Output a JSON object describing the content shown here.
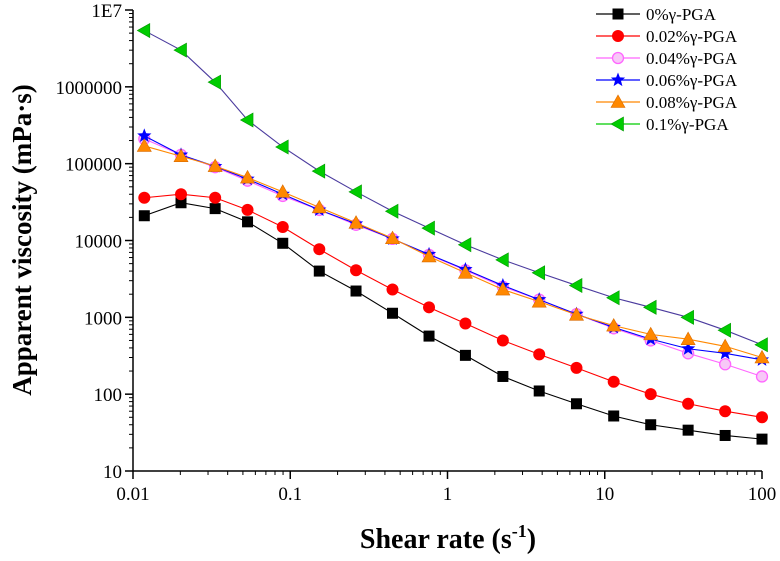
{
  "chart_data": {
    "type": "line",
    "title": "",
    "xlabel": "Shear rate (s",
    "xlabel_sup": "-1",
    "xlabel_tail": ")",
    "ylabel": "Apparent viscosity (mPa·s)",
    "xscale": "log",
    "yscale": "log",
    "xlim": [
      0.01,
      100
    ],
    "ylim": [
      10,
      10000000
    ],
    "x_ticks": [
      {
        "value": 0.01,
        "label": "0.01"
      },
      {
        "value": 0.1,
        "label": "0.1"
      },
      {
        "value": 1,
        "label": "1"
      },
      {
        "value": 10,
        "label": "10"
      },
      {
        "value": 100,
        "label": "100"
      }
    ],
    "y_ticks": [
      {
        "value": 10,
        "label": "10"
      },
      {
        "value": 100,
        "label": "100"
      },
      {
        "value": 1000,
        "label": "1000"
      },
      {
        "value": 10000,
        "label": "10000"
      },
      {
        "value": 100000,
        "label": "100000"
      },
      {
        "value": 1000000,
        "label": "1000000"
      },
      {
        "value": 10000000,
        "label": "1E7"
      }
    ],
    "legend_position": "top-right",
    "x": [
      0.0118,
      0.0202,
      0.0333,
      0.0535,
      0.0896,
      0.153,
      0.262,
      0.447,
      0.763,
      1.3,
      2.25,
      3.83,
      6.61,
      11.4,
      19.6,
      33.9,
      58.3,
      100
    ],
    "series": [
      {
        "name": "0%γ-PGA",
        "color": "#000000",
        "marker": "square",
        "values": [
          21000,
          31000,
          26000,
          17500,
          9200,
          4000,
          2200,
          1130,
          570,
          320,
          170,
          110,
          75,
          52,
          40,
          34,
          29,
          26
        ]
      },
      {
        "name": "0.02%γ-PGA",
        "color": "#ff0000",
        "marker": "circle",
        "values": [
          36000,
          40000,
          36000,
          25000,
          15000,
          7700,
          4100,
          2300,
          1350,
          830,
          500,
          330,
          220,
          145,
          100,
          75,
          60,
          50
        ]
      },
      {
        "name": "0.04%γ-PGA",
        "color": "#ff66ff",
        "marker": "circle-open",
        "values": [
          210000,
          130000,
          90000,
          60000,
          38000,
          25000,
          16000,
          10500,
          6500,
          4100,
          2500,
          1700,
          1100,
          720,
          500,
          340,
          245,
          170
        ]
      },
      {
        "name": "0.06%γ-PGA",
        "color": "#0000ff",
        "marker": "star",
        "values": [
          230000,
          130000,
          92000,
          63000,
          40000,
          25000,
          16500,
          10500,
          6600,
          4200,
          2600,
          1700,
          1100,
          740,
          520,
          390,
          340,
          280
        ]
      },
      {
        "name": "0.08%γ-PGA",
        "color": "#ff8800",
        "marker": "triangle-up",
        "values": [
          170000,
          125000,
          93000,
          66000,
          43000,
          27000,
          17000,
          10700,
          6200,
          3800,
          2300,
          1600,
          1080,
          780,
          600,
          520,
          420,
          300
        ]
      },
      {
        "name": "0.1%γ-PGA",
        "color": "#00cc00",
        "marker": "triangle-left",
        "values": [
          5400000,
          3000000,
          1150000,
          370000,
          165000,
          80000,
          43000,
          24000,
          14500,
          8800,
          5600,
          3800,
          2600,
          1800,
          1350,
          1000,
          680,
          440
        ]
      }
    ]
  }
}
